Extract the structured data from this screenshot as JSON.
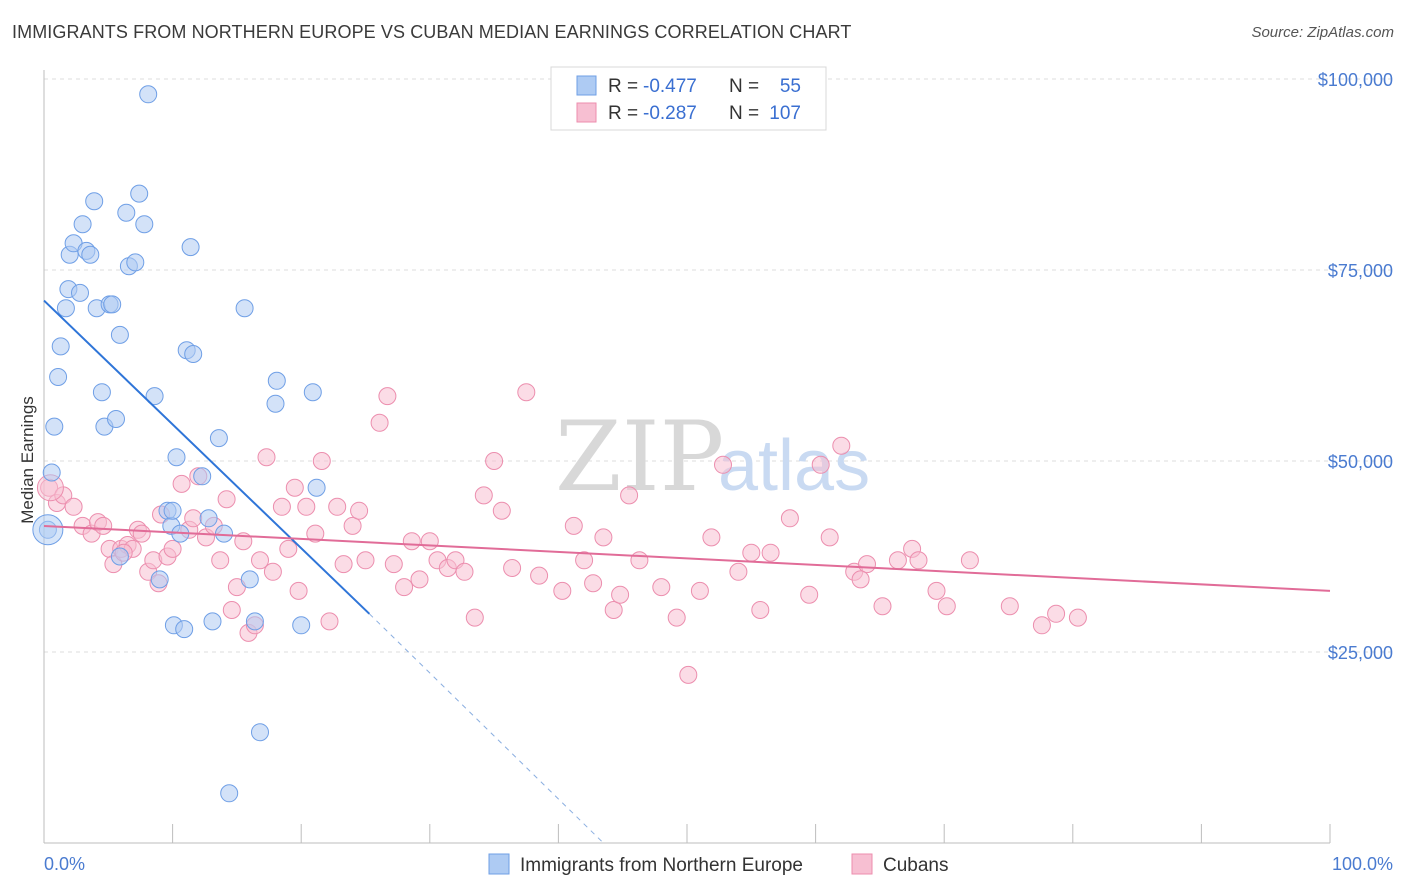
{
  "title": "IMMIGRANTS FROM NORTHERN EUROPE VS CUBAN MEDIAN EARNINGS CORRELATION CHART",
  "source": "Source: ZipAtlas.com",
  "watermark": {
    "zip": "ZIP",
    "atlas": "atlas"
  },
  "colors": {
    "blue_fill": "#aecbf3",
    "blue_stroke": "#6f9fe6",
    "blue_line": "#2f75d8",
    "pink_fill": "#f7bfd2",
    "pink_stroke": "#ec8eae",
    "pink_line": "#e16c98",
    "grid": "#dddddd",
    "axis_text": "#4a7bd0"
  },
  "legend": {
    "rows": [
      {
        "r_label": "R = ",
        "r_value": "-0.477",
        "n_label": "N = ",
        "n_value": "55"
      },
      {
        "r_label": "R = ",
        "r_value": "-0.287",
        "n_label": "N = ",
        "n_value": "107"
      }
    ]
  },
  "chart_data": {
    "type": "scatter",
    "xlabel": "",
    "ylabel": "Median Earnings",
    "xlim": [
      0,
      100
    ],
    "ylim": [
      0,
      105000
    ],
    "x_tick_labels": [
      "0.0%",
      "100.0%"
    ],
    "y_ticks": [
      25000,
      50000,
      75000,
      100000
    ],
    "y_tick_labels": [
      "$25,000",
      "$50,000",
      "$75,000",
      "$100,000"
    ],
    "grid": true,
    "series": [
      {
        "name": "Immigrants from Northern Europe",
        "color": "blue",
        "trend": {
          "x0": 0,
          "y0": 71000,
          "x1": 25.3,
          "y1": 30000,
          "dash_to_x": 43.5,
          "dash_to_y": 0
        },
        "points": [
          [
            0.3,
            41000
          ],
          [
            0.6,
            48500
          ],
          [
            0.8,
            54500
          ],
          [
            1.1,
            61000
          ],
          [
            1.3,
            65000
          ],
          [
            1.7,
            70000
          ],
          [
            1.9,
            72500
          ],
          [
            2.0,
            77000
          ],
          [
            2.3,
            78500
          ],
          [
            2.8,
            72000
          ],
          [
            3.0,
            81000
          ],
          [
            3.3,
            77500
          ],
          [
            3.6,
            77000
          ],
          [
            3.9,
            84000
          ],
          [
            4.1,
            70000
          ],
          [
            4.5,
            59000
          ],
          [
            4.7,
            54500
          ],
          [
            5.1,
            70500
          ],
          [
            5.3,
            70500
          ],
          [
            5.6,
            55500
          ],
          [
            5.9,
            66500
          ],
          [
            6.4,
            82500
          ],
          [
            6.6,
            75500
          ],
          [
            7.1,
            76000
          ],
          [
            7.4,
            85000
          ],
          [
            7.8,
            81000
          ],
          [
            8.1,
            98000
          ],
          [
            8.6,
            58500
          ],
          [
            9.0,
            34500
          ],
          [
            9.6,
            43500
          ],
          [
            9.9,
            41500
          ],
          [
            10.0,
            43500
          ],
          [
            10.1,
            28500
          ],
          [
            10.3,
            50500
          ],
          [
            10.6,
            40500
          ],
          [
            10.9,
            28000
          ],
          [
            11.1,
            64500
          ],
          [
            11.4,
            78000
          ],
          [
            11.6,
            64000
          ],
          [
            12.3,
            48000
          ],
          [
            12.8,
            42500
          ],
          [
            13.1,
            29000
          ],
          [
            13.6,
            53000
          ],
          [
            14.0,
            40500
          ],
          [
            14.4,
            6500
          ],
          [
            15.6,
            70000
          ],
          [
            16.0,
            34500
          ],
          [
            16.4,
            29000
          ],
          [
            16.8,
            14500
          ],
          [
            18.0,
            57500
          ],
          [
            18.1,
            60500
          ],
          [
            20.0,
            28500
          ],
          [
            20.9,
            59000
          ],
          [
            21.2,
            46500
          ],
          [
            5.9,
            37500
          ]
        ]
      },
      {
        "name": "Cubans",
        "color": "pink",
        "trend": {
          "x0": 0,
          "y0": 41500,
          "x1": 100,
          "y1": 33000
        },
        "points": [
          [
            0.4,
            46500
          ],
          [
            1.0,
            44500
          ],
          [
            1.5,
            45500
          ],
          [
            2.3,
            44000
          ],
          [
            3.0,
            41500
          ],
          [
            3.7,
            40500
          ],
          [
            4.2,
            42000
          ],
          [
            4.6,
            41500
          ],
          [
            5.1,
            38500
          ],
          [
            5.4,
            36500
          ],
          [
            6.0,
            38500
          ],
          [
            6.5,
            39000
          ],
          [
            6.9,
            38500
          ],
          [
            7.3,
            41000
          ],
          [
            7.6,
            40500
          ],
          [
            8.1,
            35500
          ],
          [
            8.5,
            37000
          ],
          [
            9.1,
            43000
          ],
          [
            9.6,
            37500
          ],
          [
            10.0,
            38500
          ],
          [
            10.7,
            47000
          ],
          [
            11.3,
            41000
          ],
          [
            11.6,
            42500
          ],
          [
            12.0,
            48000
          ],
          [
            12.6,
            40000
          ],
          [
            13.2,
            41500
          ],
          [
            13.7,
            37000
          ],
          [
            14.2,
            45000
          ],
          [
            14.6,
            30500
          ],
          [
            15.0,
            33500
          ],
          [
            15.5,
            39500
          ],
          [
            15.9,
            27500
          ],
          [
            16.4,
            28500
          ],
          [
            16.8,
            37000
          ],
          [
            17.3,
            50500
          ],
          [
            17.8,
            35500
          ],
          [
            18.5,
            44000
          ],
          [
            19.0,
            38500
          ],
          [
            19.5,
            46500
          ],
          [
            19.8,
            33000
          ],
          [
            20.4,
            44000
          ],
          [
            21.1,
            40500
          ],
          [
            21.6,
            50000
          ],
          [
            22.2,
            29000
          ],
          [
            22.8,
            44000
          ],
          [
            23.3,
            36500
          ],
          [
            24.0,
            41500
          ],
          [
            24.5,
            43500
          ],
          [
            25.0,
            37000
          ],
          [
            26.1,
            55000
          ],
          [
            26.7,
            58500
          ],
          [
            27.2,
            36500
          ],
          [
            28.0,
            33500
          ],
          [
            28.6,
            39500
          ],
          [
            29.2,
            34500
          ],
          [
            30.0,
            39500
          ],
          [
            30.6,
            37000
          ],
          [
            31.4,
            36000
          ],
          [
            32.0,
            37000
          ],
          [
            32.7,
            35500
          ],
          [
            33.5,
            29500
          ],
          [
            34.2,
            45500
          ],
          [
            35.0,
            50000
          ],
          [
            35.6,
            43500
          ],
          [
            36.4,
            36000
          ],
          [
            37.5,
            59000
          ],
          [
            38.5,
            35000
          ],
          [
            40.3,
            33000
          ],
          [
            41.2,
            41500
          ],
          [
            42.0,
            37000
          ],
          [
            42.7,
            34000
          ],
          [
            43.5,
            40000
          ],
          [
            44.3,
            30500
          ],
          [
            44.8,
            32500
          ],
          [
            45.5,
            45500
          ],
          [
            46.3,
            37000
          ],
          [
            48.0,
            33500
          ],
          [
            49.2,
            29500
          ],
          [
            50.1,
            22000
          ],
          [
            51.0,
            33000
          ],
          [
            51.9,
            40000
          ],
          [
            52.8,
            49500
          ],
          [
            54.0,
            35500
          ],
          [
            55.0,
            38000
          ],
          [
            55.7,
            30500
          ],
          [
            56.5,
            38000
          ],
          [
            58.0,
            42500
          ],
          [
            59.5,
            32500
          ],
          [
            60.4,
            49500
          ],
          [
            61.1,
            40000
          ],
          [
            62.0,
            52000
          ],
          [
            63.0,
            35500
          ],
          [
            64.0,
            36500
          ],
          [
            65.2,
            31000
          ],
          [
            66.4,
            37000
          ],
          [
            67.5,
            38500
          ],
          [
            68.0,
            37000
          ],
          [
            69.4,
            33000
          ],
          [
            70.2,
            31000
          ],
          [
            72.0,
            37000
          ],
          [
            75.1,
            31000
          ],
          [
            77.6,
            28500
          ],
          [
            78.7,
            30000
          ],
          [
            80.4,
            29500
          ],
          [
            6.2,
            38000
          ],
          [
            8.9,
            34000
          ],
          [
            63.5,
            34500
          ]
        ]
      }
    ]
  }
}
